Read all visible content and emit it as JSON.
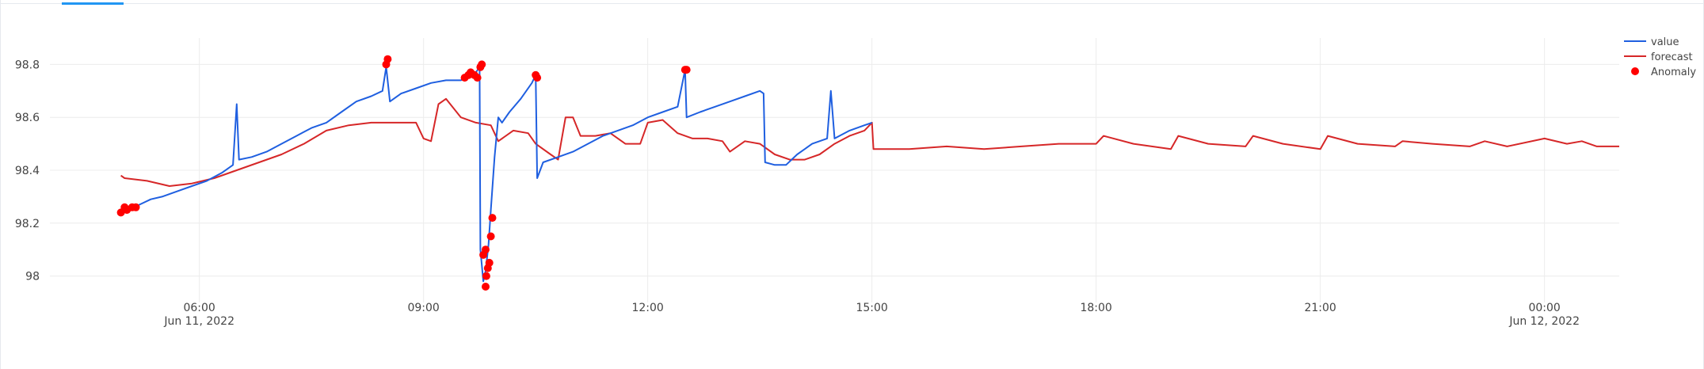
{
  "chart_data": {
    "type": "line",
    "x_axis": {
      "range_hours": [
        4.0,
        25.0
      ],
      "ticks": [
        {
          "h": 6,
          "label": "06:00",
          "sub": "Jun 11, 2022"
        },
        {
          "h": 9,
          "label": "09:00",
          "sub": ""
        },
        {
          "h": 12,
          "label": "12:00",
          "sub": ""
        },
        {
          "h": 15,
          "label": "15:00",
          "sub": ""
        },
        {
          "h": 18,
          "label": "18:00",
          "sub": ""
        },
        {
          "h": 21,
          "label": "21:00",
          "sub": ""
        },
        {
          "h": 24,
          "label": "00:00",
          "sub": "Jun 12, 2022"
        }
      ]
    },
    "y_axis": {
      "range": [
        97.9,
        98.9
      ],
      "ticks": [
        {
          "v": 98.0,
          "label": "98"
        },
        {
          "v": 98.2,
          "label": "98.2"
        },
        {
          "v": 98.4,
          "label": "98.4"
        },
        {
          "v": 98.6,
          "label": "98.6"
        },
        {
          "v": 98.8,
          "label": "98.8"
        }
      ]
    },
    "grid": true,
    "legend_position": "top-right",
    "series": [
      {
        "name": "value",
        "color": "#1f5fe0",
        "points": [
          [
            4.95,
            98.24
          ],
          [
            5.05,
            98.25
          ],
          [
            5.1,
            98.26
          ],
          [
            5.2,
            98.27
          ],
          [
            5.35,
            98.29
          ],
          [
            5.5,
            98.3
          ],
          [
            5.7,
            98.32
          ],
          [
            5.9,
            98.34
          ],
          [
            6.1,
            98.36
          ],
          [
            6.3,
            98.39
          ],
          [
            6.45,
            98.42
          ],
          [
            6.5,
            98.65
          ],
          [
            6.53,
            98.44
          ],
          [
            6.7,
            98.45
          ],
          [
            6.9,
            98.47
          ],
          [
            7.1,
            98.5
          ],
          [
            7.3,
            98.53
          ],
          [
            7.5,
            98.56
          ],
          [
            7.7,
            98.58
          ],
          [
            7.9,
            98.62
          ],
          [
            8.1,
            98.66
          ],
          [
            8.3,
            98.68
          ],
          [
            8.45,
            98.7
          ],
          [
            8.5,
            98.79
          ],
          [
            8.55,
            98.66
          ],
          [
            8.7,
            98.69
          ],
          [
            8.9,
            98.71
          ],
          [
            9.1,
            98.73
          ],
          [
            9.3,
            98.74
          ],
          [
            9.5,
            98.74
          ],
          [
            9.6,
            98.76
          ],
          [
            9.7,
            98.77
          ],
          [
            9.75,
            98.79
          ],
          [
            9.76,
            98.1
          ],
          [
            9.8,
            97.98
          ],
          [
            9.83,
            98.02
          ],
          [
            9.87,
            98.12
          ],
          [
            9.9,
            98.25
          ],
          [
            9.95,
            98.45
          ],
          [
            10.0,
            98.6
          ],
          [
            10.05,
            98.58
          ],
          [
            10.15,
            98.62
          ],
          [
            10.3,
            98.67
          ],
          [
            10.45,
            98.73
          ],
          [
            10.5,
            98.76
          ],
          [
            10.52,
            98.37
          ],
          [
            10.6,
            98.43
          ],
          [
            10.8,
            98.45
          ],
          [
            11.0,
            98.47
          ],
          [
            11.2,
            98.5
          ],
          [
            11.4,
            98.53
          ],
          [
            11.6,
            98.55
          ],
          [
            11.8,
            98.57
          ],
          [
            12.0,
            98.6
          ],
          [
            12.2,
            98.62
          ],
          [
            12.4,
            98.64
          ],
          [
            12.5,
            98.78
          ],
          [
            12.52,
            98.6
          ],
          [
            12.7,
            98.62
          ],
          [
            12.9,
            98.64
          ],
          [
            13.1,
            98.66
          ],
          [
            13.3,
            98.68
          ],
          [
            13.5,
            98.7
          ],
          [
            13.55,
            98.69
          ],
          [
            13.57,
            98.43
          ],
          [
            13.7,
            98.42
          ],
          [
            13.85,
            98.42
          ],
          [
            14.0,
            98.46
          ],
          [
            14.2,
            98.5
          ],
          [
            14.4,
            98.52
          ],
          [
            14.45,
            98.7
          ],
          [
            14.5,
            98.52
          ],
          [
            14.7,
            98.55
          ],
          [
            14.9,
            98.57
          ],
          [
            15.0,
            98.58
          ]
        ]
      },
      {
        "name": "forecast",
        "color": "#d62728",
        "points": [
          [
            4.95,
            98.38
          ],
          [
            5.0,
            98.37
          ],
          [
            5.3,
            98.36
          ],
          [
            5.6,
            98.34
          ],
          [
            5.9,
            98.35
          ],
          [
            6.2,
            98.37
          ],
          [
            6.5,
            98.4
          ],
          [
            6.8,
            98.43
          ],
          [
            7.1,
            98.46
          ],
          [
            7.4,
            98.5
          ],
          [
            7.7,
            98.55
          ],
          [
            8.0,
            98.57
          ],
          [
            8.3,
            98.58
          ],
          [
            8.6,
            98.58
          ],
          [
            8.9,
            98.58
          ],
          [
            9.0,
            98.52
          ],
          [
            9.1,
            98.51
          ],
          [
            9.2,
            98.65
          ],
          [
            9.3,
            98.67
          ],
          [
            9.5,
            98.6
          ],
          [
            9.7,
            98.58
          ],
          [
            9.9,
            98.57
          ],
          [
            10.0,
            98.51
          ],
          [
            10.2,
            98.55
          ],
          [
            10.4,
            98.54
          ],
          [
            10.5,
            98.5
          ],
          [
            10.7,
            98.46
          ],
          [
            10.8,
            98.44
          ],
          [
            10.9,
            98.6
          ],
          [
            11.0,
            98.6
          ],
          [
            11.1,
            98.53
          ],
          [
            11.3,
            98.53
          ],
          [
            11.5,
            98.54
          ],
          [
            11.7,
            98.5
          ],
          [
            11.9,
            98.5
          ],
          [
            12.0,
            98.58
          ],
          [
            12.2,
            98.59
          ],
          [
            12.4,
            98.54
          ],
          [
            12.6,
            98.52
          ],
          [
            12.8,
            98.52
          ],
          [
            13.0,
            98.51
          ],
          [
            13.1,
            98.47
          ],
          [
            13.3,
            98.51
          ],
          [
            13.5,
            98.5
          ],
          [
            13.7,
            98.46
          ],
          [
            13.9,
            98.44
          ],
          [
            14.1,
            98.44
          ],
          [
            14.3,
            98.46
          ],
          [
            14.5,
            98.5
          ],
          [
            14.7,
            98.53
          ],
          [
            14.9,
            98.55
          ],
          [
            15.0,
            98.58
          ],
          [
            15.02,
            98.48
          ],
          [
            15.5,
            98.48
          ],
          [
            16.0,
            98.49
          ],
          [
            16.5,
            98.48
          ],
          [
            17.0,
            98.49
          ],
          [
            17.5,
            98.5
          ],
          [
            18.0,
            98.5
          ],
          [
            18.1,
            98.53
          ],
          [
            18.5,
            98.5
          ],
          [
            19.0,
            98.48
          ],
          [
            19.1,
            98.53
          ],
          [
            19.5,
            98.5
          ],
          [
            20.0,
            98.49
          ],
          [
            20.1,
            98.53
          ],
          [
            20.5,
            98.5
          ],
          [
            21.0,
            98.48
          ],
          [
            21.1,
            98.53
          ],
          [
            21.5,
            98.5
          ],
          [
            22.0,
            98.49
          ],
          [
            22.1,
            98.51
          ],
          [
            22.5,
            98.5
          ],
          [
            23.0,
            98.49
          ],
          [
            23.2,
            98.51
          ],
          [
            23.5,
            98.49
          ],
          [
            24.0,
            98.52
          ],
          [
            24.3,
            98.5
          ],
          [
            24.5,
            98.51
          ],
          [
            24.7,
            98.49
          ],
          [
            25.0,
            98.49
          ]
        ]
      },
      {
        "name": "Anomaly",
        "color": "#ff0000",
        "points": [
          [
            4.95,
            98.24
          ],
          [
            5.0,
            98.26
          ],
          [
            5.03,
            98.25
          ],
          [
            5.1,
            98.26
          ],
          [
            5.15,
            98.26
          ],
          [
            8.5,
            98.8
          ],
          [
            8.52,
            98.82
          ],
          [
            9.55,
            98.75
          ],
          [
            9.6,
            98.76
          ],
          [
            9.63,
            98.77
          ],
          [
            9.68,
            98.76
          ],
          [
            9.72,
            98.75
          ],
          [
            9.76,
            98.79
          ],
          [
            9.78,
            98.8
          ],
          [
            9.8,
            98.08
          ],
          [
            9.83,
            98.1
          ],
          [
            9.84,
            98.0
          ],
          [
            9.86,
            98.03
          ],
          [
            9.88,
            98.05
          ],
          [
            9.83,
            97.96
          ],
          [
            9.9,
            98.15
          ],
          [
            9.92,
            98.22
          ],
          [
            10.5,
            98.76
          ],
          [
            10.52,
            98.75
          ],
          [
            12.5,
            98.78
          ],
          [
            12.52,
            98.78
          ]
        ]
      }
    ]
  }
}
